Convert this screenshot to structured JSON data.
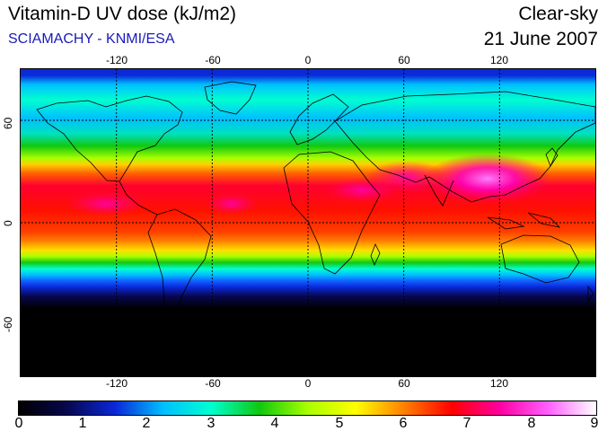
{
  "header": {
    "title": "Vitamin-D UV dose (kJ/m2)",
    "subtitle": "SCIAMACHY - KNMI/ESA",
    "condition": "Clear-sky",
    "date": "21 June 2007"
  },
  "map": {
    "projection": "equirectangular",
    "grid": true,
    "lon_ticks": [
      "-120",
      "-60",
      "0",
      "60",
      "120"
    ],
    "lat_ticks": [
      "60",
      "0",
      "-60"
    ],
    "palette": [
      "#000000",
      "#07074e",
      "#0a28d8",
      "#00bfff",
      "#00ffd0",
      "#10c810",
      "#a8ff00",
      "#ffff00",
      "#ff8000",
      "#ff0000",
      "#ff00a0",
      "#ff60ff",
      "#ffffff"
    ]
  },
  "colorbar": {
    "min": 0,
    "max": 9,
    "labels": [
      "0",
      "1",
      "2",
      "3",
      "4",
      "5",
      "6",
      "7",
      "8",
      "9"
    ]
  }
}
